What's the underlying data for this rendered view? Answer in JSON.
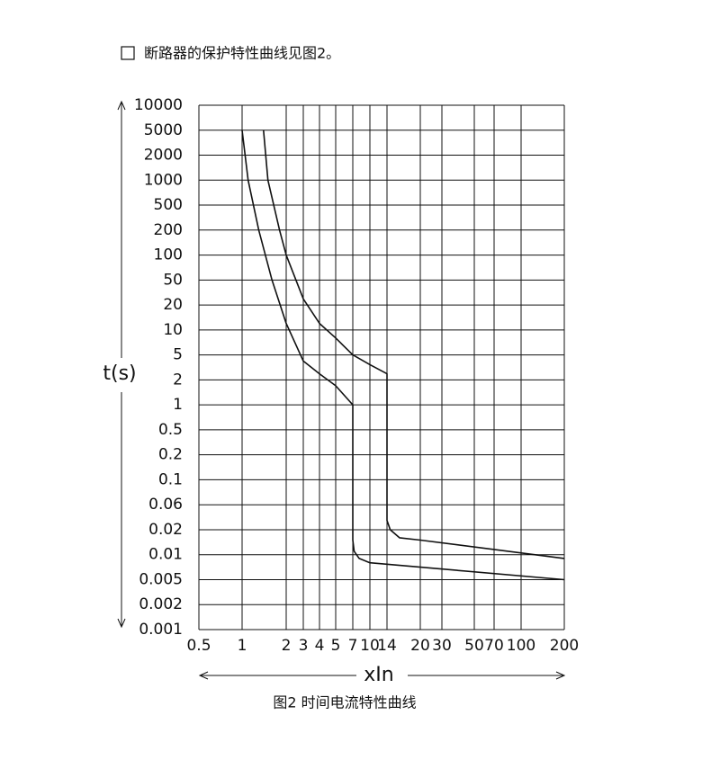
{
  "chart_data": {
    "type": "line",
    "header": "断路器的保护特性曲线见图2。",
    "caption": "图2 时间电流特性曲线",
    "y_label": "t(s)",
    "x_label": "xIn",
    "xscale": "log",
    "yscale": "log",
    "grid": true,
    "xlim": [
      0.5,
      200
    ],
    "ylim": [
      0.001,
      10000
    ],
    "xticks": [
      0.5,
      1,
      2,
      3,
      4,
      5,
      7,
      10,
      14,
      20,
      30,
      50,
      70,
      100,
      200
    ],
    "yticks": [
      10000,
      5000,
      2000,
      1000,
      500,
      200,
      100,
      50,
      20,
      10,
      5,
      2,
      1,
      0.5,
      0.2,
      0.1,
      0.06,
      0.02,
      0.01,
      0.005,
      0.002,
      0.001
    ],
    "series": [
      {
        "color": "#111111",
        "x": [
          1,
          1.1,
          1.3,
          1.6,
          2,
          3,
          4,
          5,
          7,
          7,
          7.2,
          8,
          10,
          200
        ],
        "values": [
          5000,
          1000,
          200,
          50,
          12,
          4,
          2.5,
          1.7,
          1,
          0.015,
          0.011,
          0.009,
          0.008,
          0.005
        ]
      },
      {
        "color": "#111111",
        "x": [
          1.4,
          1.5,
          1.8,
          2,
          3,
          4,
          5,
          7,
          10,
          14,
          14,
          14.5,
          16,
          20,
          200
        ],
        "values": [
          5000,
          1000,
          200,
          100,
          25,
          12,
          8,
          5,
          3.5,
          2.5,
          0.03,
          0.02,
          0.016,
          0.015,
          0.009
        ]
      }
    ]
  }
}
